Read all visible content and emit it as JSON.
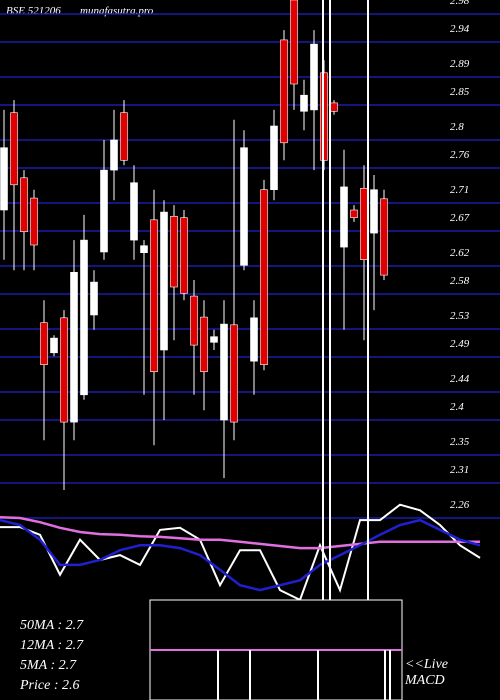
{
  "chart_data": {
    "type": "candlestick",
    "title": "BSE 521206",
    "subtitle": "munafasutra.pro",
    "ylim": [
      2.0,
      3.0
    ],
    "yticks": [
      2.98,
      2.94,
      2.89,
      2.85,
      2.8,
      2.76,
      2.71,
      2.67,
      2.62,
      2.58,
      2.53,
      2.49,
      2.44,
      2.4,
      2.35,
      2.31,
      2.26
    ],
    "grid": true,
    "up_color": "#ffffff",
    "down_color": "#e00000",
    "grid_color": "#1c1ca8",
    "open": [
      2.7,
      2.839,
      2.746,
      2.717,
      2.539,
      2.496,
      2.546,
      2.397,
      2.436,
      2.55,
      2.64,
      2.757,
      2.839,
      2.657,
      2.639,
      2.686,
      2.5,
      2.691,
      2.689,
      2.577,
      2.547,
      2.511,
      2.4,
      2.536,
      2.621,
      2.484,
      2.729,
      2.729,
      2.943,
      3.0,
      2.841,
      2.843,
      2.896,
      2.853,
      2.647,
      2.7,
      2.731,
      2.667,
      2.716
    ],
    "high": [
      2.843,
      2.857,
      2.757,
      2.729,
      2.571,
      2.521,
      2.557,
      2.657,
      2.693,
      2.614,
      2.8,
      2.843,
      2.857,
      2.764,
      2.657,
      2.729,
      2.714,
      2.707,
      2.7,
      2.6,
      2.571,
      2.529,
      2.571,
      2.829,
      2.814,
      2.571,
      2.743,
      2.843,
      2.957,
      3.0,
      2.886,
      2.957,
      2.914,
      2.857,
      2.786,
      2.707,
      2.764,
      2.75,
      2.729
    ],
    "low": [
      2.629,
      2.614,
      2.614,
      2.614,
      2.371,
      2.491,
      2.3,
      2.371,
      2.429,
      2.529,
      2.629,
      2.714,
      2.764,
      2.629,
      2.436,
      2.364,
      2.4,
      2.514,
      2.571,
      2.436,
      2.414,
      2.5,
      2.317,
      2.371,
      2.614,
      2.436,
      2.471,
      2.714,
      2.771,
      2.843,
      2.814,
      2.757,
      2.757,
      2.836,
      2.529,
      2.683,
      2.514,
      2.557,
      2.6
    ],
    "close": [
      2.789,
      2.736,
      2.669,
      2.65,
      2.479,
      2.517,
      2.397,
      2.611,
      2.657,
      2.597,
      2.757,
      2.8,
      2.771,
      2.739,
      2.649,
      2.469,
      2.697,
      2.59,
      2.581,
      2.507,
      2.469,
      2.519,
      2.537,
      2.397,
      2.789,
      2.546,
      2.479,
      2.82,
      2.796,
      2.88,
      2.864,
      2.937,
      2.771,
      2.841,
      2.733,
      2.689,
      2.629,
      2.729,
      2.607
    ],
    "series": [
      {
        "color": "#ffffff",
        "values": [
          2.247,
          2.247,
          2.236,
          2.179,
          2.229,
          2.2,
          2.207,
          2.193,
          2.243,
          2.246,
          2.229,
          2.164,
          2.214,
          2.214,
          2.157,
          2.143,
          2.221,
          2.157,
          2.257,
          2.257,
          2.279,
          2.271,
          2.25,
          2.221,
          2.203
        ]
      },
      {
        "color": "#e070e0",
        "values": [
          2.261,
          2.26,
          2.254,
          2.246,
          2.24,
          2.237,
          2.236,
          2.234,
          2.233,
          2.231,
          2.229,
          2.229,
          2.226,
          2.223,
          2.22,
          2.217,
          2.217,
          2.22,
          2.223,
          2.226,
          2.226,
          2.226,
          2.226,
          2.226,
          2.226
        ]
      },
      {
        "color": "#2020d0",
        "values": [
          2.257,
          2.25,
          2.229,
          2.193,
          2.193,
          2.2,
          2.214,
          2.221,
          2.221,
          2.217,
          2.207,
          2.186,
          2.164,
          2.157,
          2.164,
          2.171,
          2.193,
          2.207,
          2.221,
          2.236,
          2.25,
          2.257,
          2.243,
          2.229,
          2.221
        ]
      }
    ],
    "legend_lines": [
      "50MA : 2.7",
      "12MA : 2.7",
      "5MA : 2.7",
      "Price   : 2.6"
    ],
    "macd_label": [
      "<<Live",
      "MACD"
    ]
  }
}
